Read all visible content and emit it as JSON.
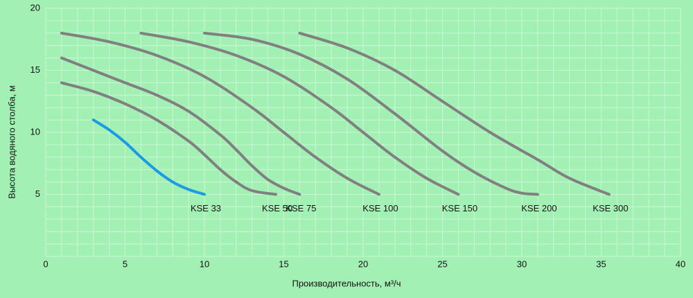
{
  "chart_data": {
    "type": "line",
    "x_label": "Производительность, м³/ч",
    "y_label": "Высота водяного столба, м",
    "xlim": [
      0,
      40
    ],
    "xticks": [
      0,
      5,
      10,
      15,
      20,
      25,
      30,
      35,
      40
    ],
    "ylim": [
      0,
      20
    ],
    "yticks": [
      5,
      10,
      15,
      20
    ],
    "grid": true,
    "series": [
      {
        "name": "KSE 33",
        "color": "#1a9be6",
        "x": [
          3,
          4,
          5,
          6,
          7,
          8,
          9,
          10
        ],
        "values": [
          11,
          10.2,
          9.2,
          8.0,
          6.9,
          6.0,
          5.4,
          5.0
        ]
      },
      {
        "name": "KSE 50",
        "color": "#808080",
        "x": [
          1,
          3,
          5,
          7,
          9,
          10,
          11,
          12,
          13,
          14.5
        ],
        "values": [
          14,
          13.3,
          12.3,
          11,
          9.3,
          8.2,
          7,
          6,
          5.3,
          5
        ]
      },
      {
        "name": "KSE 75",
        "color": "#808080",
        "x": [
          1,
          3,
          5,
          7,
          9,
          11,
          12,
          13,
          14,
          15,
          16
        ],
        "values": [
          16,
          15,
          14,
          13,
          11.7,
          9.8,
          8.6,
          7.3,
          6.2,
          5.5,
          5
        ]
      },
      {
        "name": "KSE 100",
        "color": "#808080",
        "x": [
          1,
          4,
          7,
          10,
          13,
          15,
          17,
          19,
          21
        ],
        "values": [
          18,
          17.3,
          16.2,
          14.5,
          12,
          10,
          8,
          6.3,
          5
        ]
      },
      {
        "name": "KSE 150",
        "color": "#808080",
        "x": [
          6,
          9,
          12,
          15,
          18,
          20,
          22,
          24,
          26
        ],
        "values": [
          18,
          17.3,
          16.2,
          14.5,
          12,
          10,
          8,
          6.3,
          5
        ]
      },
      {
        "name": "KSE 200",
        "color": "#808080",
        "x": [
          10,
          13,
          16,
          19,
          22,
          25,
          27,
          29,
          30,
          31
        ],
        "values": [
          18,
          17.5,
          16.3,
          14.3,
          11.5,
          8.5,
          6.8,
          5.5,
          5.1,
          5
        ]
      },
      {
        "name": "KSE 300",
        "color": "#808080",
        "x": [
          16,
          19,
          22,
          25,
          28,
          31,
          33,
          35.5
        ],
        "values": [
          18,
          16.8,
          15,
          12.5,
          10,
          7.8,
          6.3,
          5
        ]
      }
    ]
  }
}
